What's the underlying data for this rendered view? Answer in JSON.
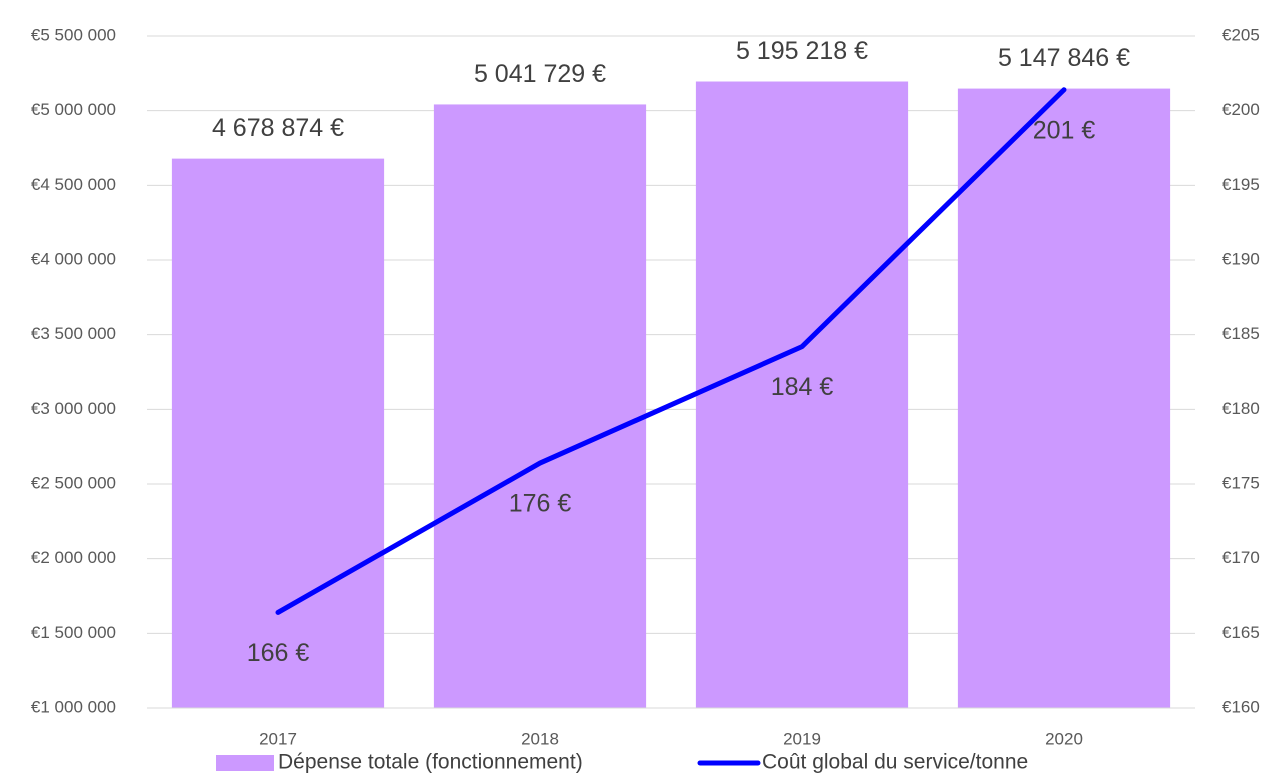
{
  "chart_data": {
    "type": "bar_line",
    "categories": [
      "2017",
      "2018",
      "2019",
      "2020"
    ],
    "series": [
      {
        "name": "Dépense totale (fonctionnement)",
        "type": "bar",
        "color": "#cc99ff",
        "axis": "y",
        "values": [
          4678874,
          5041729,
          5195218,
          5147846
        ],
        "value_labels": [
          "4 678 874 €",
          "5 041 729 €",
          "5 195 218 €",
          "5 147 846 €"
        ]
      },
      {
        "name": "Coût global du service/tonne",
        "type": "line",
        "color": "#0000ff",
        "axis": "y2",
        "values": [
          166.4,
          176.4,
          184.2,
          201.4
        ],
        "value_labels": [
          "166 €",
          "176 €",
          "184 €",
          "201 €"
        ]
      }
    ],
    "ylim": [
      1000000,
      5500000
    ],
    "yticks": [
      {
        "value": 1000000,
        "label": "€1 000 000"
      },
      {
        "value": 1500000,
        "label": "€1 500 000"
      },
      {
        "value": 2000000,
        "label": "€2 000 000"
      },
      {
        "value": 2500000,
        "label": "€2 500 000"
      },
      {
        "value": 3000000,
        "label": "€3 000 000"
      },
      {
        "value": 3500000,
        "label": "€3 500 000"
      },
      {
        "value": 4000000,
        "label": "€4 000 000"
      },
      {
        "value": 4500000,
        "label": "€4 500 000"
      },
      {
        "value": 5000000,
        "label": "€5 000 000"
      },
      {
        "value": 5500000,
        "label": "€5 500 000"
      }
    ],
    "y2lim": [
      160,
      205
    ],
    "y2ticks": [
      {
        "value": 160,
        "label": "€160"
      },
      {
        "value": 165,
        "label": "€165"
      },
      {
        "value": 170,
        "label": "€170"
      },
      {
        "value": 175,
        "label": "€175"
      },
      {
        "value": 180,
        "label": "€180"
      },
      {
        "value": 185,
        "label": "€185"
      },
      {
        "value": 190,
        "label": "€190"
      },
      {
        "value": 195,
        "label": "€195"
      },
      {
        "value": 200,
        "label": "€200"
      },
      {
        "value": 205,
        "label": "€205"
      }
    ],
    "grid": true,
    "legend": "bottom"
  }
}
